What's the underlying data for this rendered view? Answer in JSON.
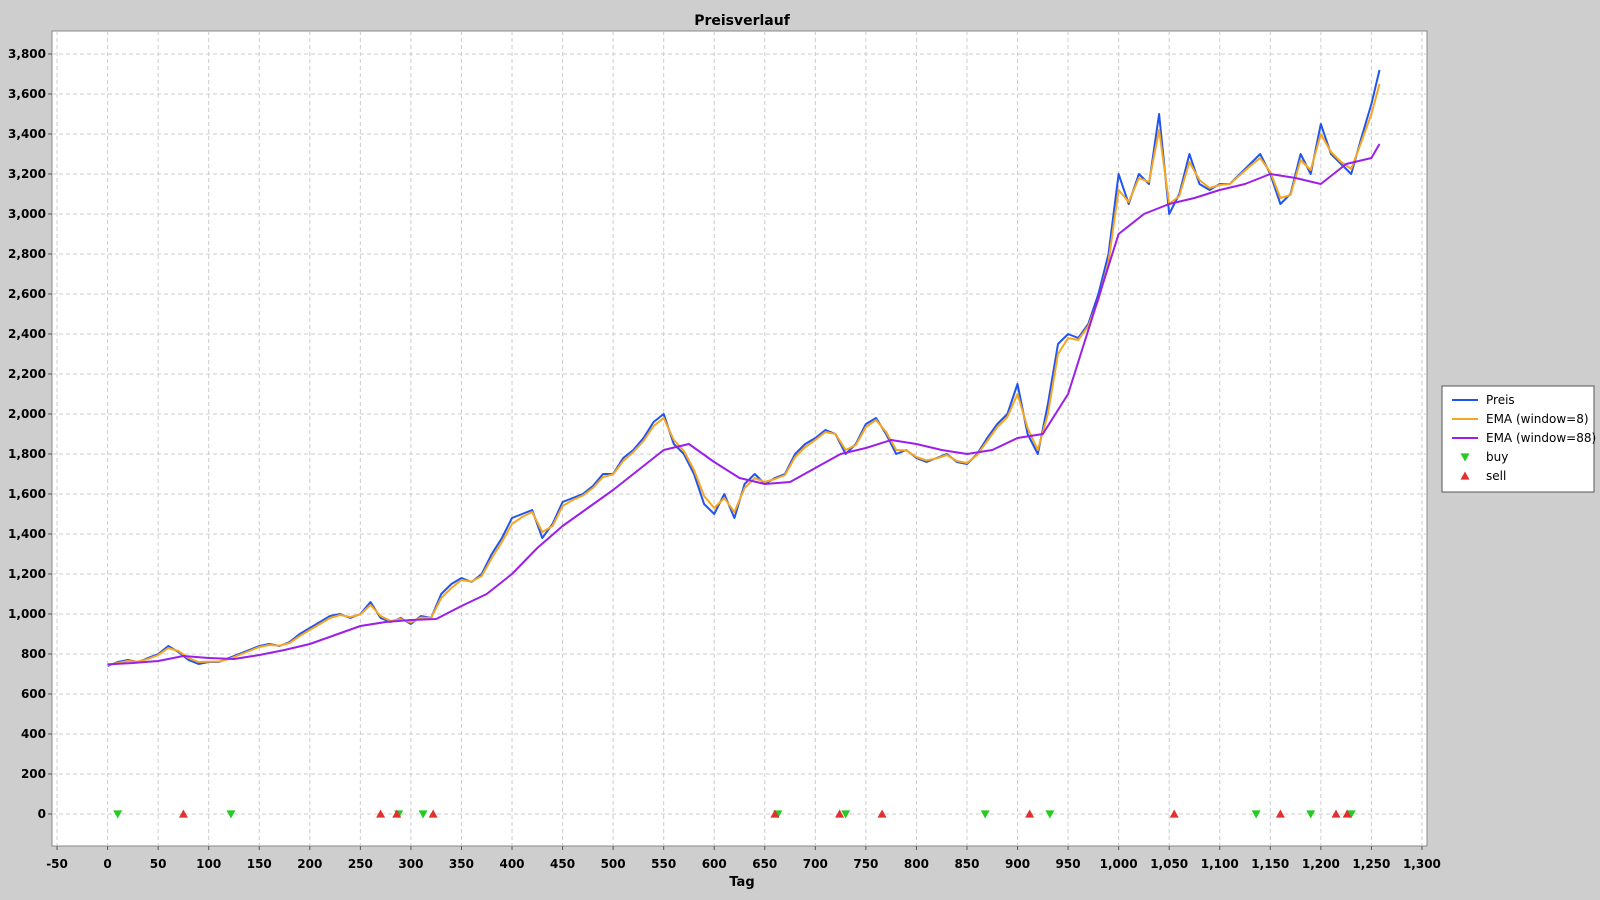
{
  "chart_data": {
    "type": "line",
    "title": "Preisverlauf",
    "xlabel": "Tag",
    "ylabel": "",
    "xlim": [
      -55,
      1305
    ],
    "ylim": [
      -160,
      3915
    ],
    "x_ticks": [
      -50,
      0,
      50,
      100,
      150,
      200,
      250,
      300,
      350,
      400,
      450,
      500,
      550,
      600,
      650,
      700,
      750,
      800,
      850,
      900,
      950,
      1000,
      1050,
      1100,
      1150,
      1200,
      1250,
      1300
    ],
    "x_tick_labels": [
      "-50",
      "0",
      "50",
      "100",
      "150",
      "200",
      "250",
      "300",
      "350",
      "400",
      "450",
      "500",
      "550",
      "600",
      "650",
      "700",
      "750",
      "800",
      "850",
      "900",
      "950",
      "1,000",
      "1,050",
      "1,100",
      "1,150",
      "1,200",
      "1,250",
      "1,300"
    ],
    "y_ticks": [
      0,
      200,
      400,
      600,
      800,
      1000,
      1200,
      1400,
      1600,
      1800,
      2000,
      2200,
      2400,
      2600,
      2800,
      3000,
      3200,
      3400,
      3600,
      3800
    ],
    "y_tick_labels": [
      "0",
      "200",
      "400",
      "600",
      "800",
      "1,000",
      "1,200",
      "1,400",
      "1,600",
      "1,800",
      "2,000",
      "2,200",
      "2,400",
      "2,600",
      "2,800",
      "3,000",
      "3,200",
      "3,400",
      "3,600",
      "3,800"
    ],
    "grid": true,
    "legend_position": "right",
    "series": [
      {
        "name": "Preis",
        "color": "#2255ee",
        "kind": "line",
        "x": [
          0,
          10,
          20,
          30,
          40,
          50,
          60,
          70,
          80,
          90,
          100,
          110,
          120,
          130,
          140,
          150,
          160,
          170,
          180,
          190,
          200,
          210,
          220,
          230,
          240,
          250,
          260,
          270,
          280,
          290,
          300,
          310,
          320,
          330,
          340,
          350,
          360,
          370,
          380,
          390,
          400,
          410,
          420,
          430,
          440,
          450,
          460,
          470,
          480,
          490,
          500,
          510,
          520,
          530,
          540,
          550,
          560,
          570,
          580,
          590,
          600,
          610,
          620,
          630,
          640,
          650,
          660,
          670,
          680,
          690,
          700,
          710,
          720,
          730,
          740,
          750,
          760,
          770,
          780,
          790,
          800,
          810,
          820,
          830,
          840,
          850,
          860,
          870,
          880,
          890,
          900,
          910,
          920,
          930,
          940,
          950,
          960,
          970,
          980,
          990,
          1000,
          1010,
          1020,
          1030,
          1040,
          1050,
          1060,
          1070,
          1080,
          1090,
          1100,
          1110,
          1120,
          1130,
          1140,
          1150,
          1160,
          1170,
          1180,
          1190,
          1200,
          1210,
          1220,
          1230,
          1240,
          1250,
          1258
        ],
        "y": [
          740,
          760,
          770,
          760,
          780,
          800,
          840,
          810,
          770,
          750,
          760,
          760,
          780,
          800,
          820,
          840,
          850,
          840,
          860,
          900,
          930,
          960,
          990,
          1000,
          980,
          1000,
          1060,
          980,
          960,
          980,
          950,
          990,
          980,
          1100,
          1150,
          1180,
          1160,
          1200,
          1300,
          1380,
          1480,
          1500,
          1520,
          1380,
          1450,
          1560,
          1580,
          1600,
          1640,
          1700,
          1700,
          1780,
          1820,
          1880,
          1960,
          2000,
          1850,
          1800,
          1700,
          1550,
          1500,
          1600,
          1480,
          1650,
          1700,
          1650,
          1680,
          1700,
          1800,
          1850,
          1880,
          1920,
          1900,
          1800,
          1850,
          1950,
          1980,
          1900,
          1800,
          1820,
          1780,
          1760,
          1780,
          1800,
          1760,
          1750,
          1800,
          1880,
          1950,
          2000,
          2150,
          1900,
          1800,
          2050,
          2350,
          2400,
          2380,
          2450,
          2600,
          2800,
          3200,
          3050,
          3200,
          3150,
          3500,
          3000,
          3100,
          3300,
          3150,
          3120,
          3150,
          3150,
          3200,
          3250,
          3300,
          3200,
          3050,
          3100,
          3300,
          3200,
          3450,
          3300,
          3250,
          3200,
          3380,
          3550,
          3720
        ]
      },
      {
        "name": "EMA (window=8)",
        "color": "#f5a623",
        "kind": "line",
        "x": [
          0,
          10,
          20,
          30,
          40,
          50,
          60,
          70,
          80,
          90,
          100,
          110,
          120,
          130,
          140,
          150,
          160,
          170,
          180,
          190,
          200,
          210,
          220,
          230,
          240,
          250,
          260,
          270,
          280,
          290,
          300,
          310,
          320,
          330,
          340,
          350,
          360,
          370,
          380,
          390,
          400,
          410,
          420,
          430,
          440,
          450,
          460,
          470,
          480,
          490,
          500,
          510,
          520,
          530,
          540,
          550,
          560,
          570,
          580,
          590,
          600,
          610,
          620,
          630,
          640,
          650,
          660,
          670,
          680,
          690,
          700,
          710,
          720,
          730,
          740,
          750,
          760,
          770,
          780,
          790,
          800,
          810,
          820,
          830,
          840,
          850,
          860,
          870,
          880,
          890,
          900,
          910,
          920,
          930,
          940,
          950,
          960,
          970,
          980,
          990,
          1000,
          1010,
          1020,
          1030,
          1040,
          1050,
          1060,
          1070,
          1080,
          1090,
          1100,
          1110,
          1120,
          1130,
          1140,
          1150,
          1160,
          1170,
          1180,
          1190,
          1200,
          1210,
          1220,
          1230,
          1240,
          1250,
          1258
        ],
        "y": [
          745,
          755,
          765,
          762,
          775,
          795,
          830,
          815,
          780,
          760,
          762,
          762,
          775,
          795,
          815,
          835,
          845,
          842,
          855,
          890,
          920,
          950,
          980,
          995,
          985,
          998,
          1045,
          990,
          965,
          975,
          958,
          982,
          980,
          1080,
          1130,
          1170,
          1162,
          1190,
          1280,
          1360,
          1450,
          1485,
          1510,
          1410,
          1440,
          1540,
          1570,
          1592,
          1630,
          1685,
          1698,
          1765,
          1810,
          1865,
          1940,
          1980,
          1870,
          1815,
          1720,
          1590,
          1530,
          1580,
          1510,
          1630,
          1680,
          1660,
          1675,
          1695,
          1785,
          1835,
          1870,
          1910,
          1900,
          1820,
          1845,
          1935,
          1970,
          1910,
          1820,
          1818,
          1785,
          1768,
          1778,
          1795,
          1765,
          1755,
          1795,
          1865,
          1935,
          1985,
          2100,
          1930,
          1820,
          2000,
          2300,
          2380,
          2370,
          2440,
          2570,
          2760,
          3120,
          3060,
          3180,
          3160,
          3420,
          3050,
          3090,
          3260,
          3170,
          3130,
          3145,
          3150,
          3195,
          3240,
          3280,
          3210,
          3080,
          3095,
          3270,
          3220,
          3400,
          3310,
          3260,
          3225,
          3360,
          3500,
          3650
        ]
      },
      {
        "name": "EMA (window=88)",
        "color": "#9b1fe8",
        "kind": "line",
        "x": [
          0,
          25,
          50,
          75,
          100,
          125,
          150,
          175,
          200,
          225,
          250,
          275,
          300,
          325,
          350,
          375,
          400,
          425,
          450,
          475,
          500,
          525,
          550,
          575,
          600,
          625,
          650,
          675,
          700,
          725,
          750,
          775,
          800,
          825,
          850,
          875,
          900,
          925,
          950,
          975,
          1000,
          1025,
          1050,
          1075,
          1100,
          1125,
          1150,
          1175,
          1200,
          1225,
          1250,
          1258
        ],
        "y": [
          748,
          755,
          765,
          790,
          780,
          775,
          795,
          820,
          850,
          895,
          940,
          960,
          970,
          975,
          1040,
          1100,
          1200,
          1330,
          1440,
          1530,
          1620,
          1720,
          1820,
          1850,
          1760,
          1680,
          1650,
          1660,
          1730,
          1800,
          1830,
          1870,
          1850,
          1820,
          1800,
          1820,
          1880,
          1900,
          2100,
          2500,
          2900,
          3000,
          3050,
          3080,
          3120,
          3150,
          3200,
          3180,
          3150,
          3250,
          3280,
          3350
        ]
      },
      {
        "name": "buy",
        "color": "#22cc22",
        "kind": "marker",
        "marker": "triangle-down",
        "x": [
          10,
          122,
          288,
          312,
          663,
          730,
          868,
          932,
          1136,
          1190,
          1230
        ],
        "y": [
          0,
          0,
          0,
          0,
          0,
          0,
          0,
          0,
          0,
          0,
          0
        ]
      },
      {
        "name": "sell",
        "color": "#e03030",
        "kind": "marker",
        "marker": "triangle-up",
        "x": [
          75,
          270,
          286,
          322,
          660,
          724,
          766,
          912,
          1055,
          1160,
          1215,
          1226
        ],
        "y": [
          0,
          0,
          0,
          0,
          0,
          0,
          0,
          0,
          0,
          0,
          0,
          0
        ]
      }
    ]
  }
}
